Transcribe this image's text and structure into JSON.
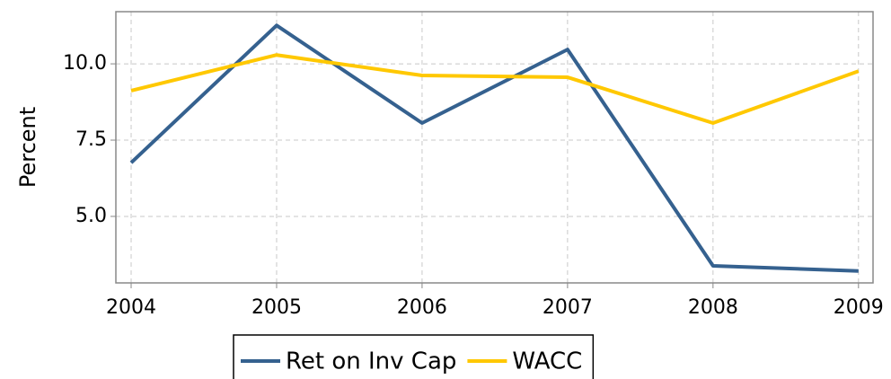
{
  "chart_data": {
    "type": "line",
    "x": [
      2004,
      2005,
      2006,
      2007,
      2008,
      2009
    ],
    "series": [
      {
        "name": "Ret on Inv Cap",
        "color": "#35618f",
        "values": [
          6.76,
          11.26,
          8.06,
          10.47,
          3.38,
          3.21
        ]
      },
      {
        "name": "WACC",
        "color": "#ffc800",
        "values": [
          9.12,
          10.29,
          9.62,
          9.56,
          8.06,
          9.76
        ]
      }
    ],
    "ylabel": "Percent",
    "xlim": [
      2003.895,
      2009.1
    ],
    "xticks": [
      2004,
      2005,
      2006,
      2007,
      2008,
      2009
    ],
    "ylim": [
      2.82,
      11.71
    ],
    "yticks": [
      {
        "value": 5,
        "label": "5.0"
      },
      {
        "value": 7.5,
        "label": "7.5"
      },
      {
        "value": 10,
        "label": "10.0"
      }
    ],
    "grid": true,
    "legend": "bottom"
  }
}
